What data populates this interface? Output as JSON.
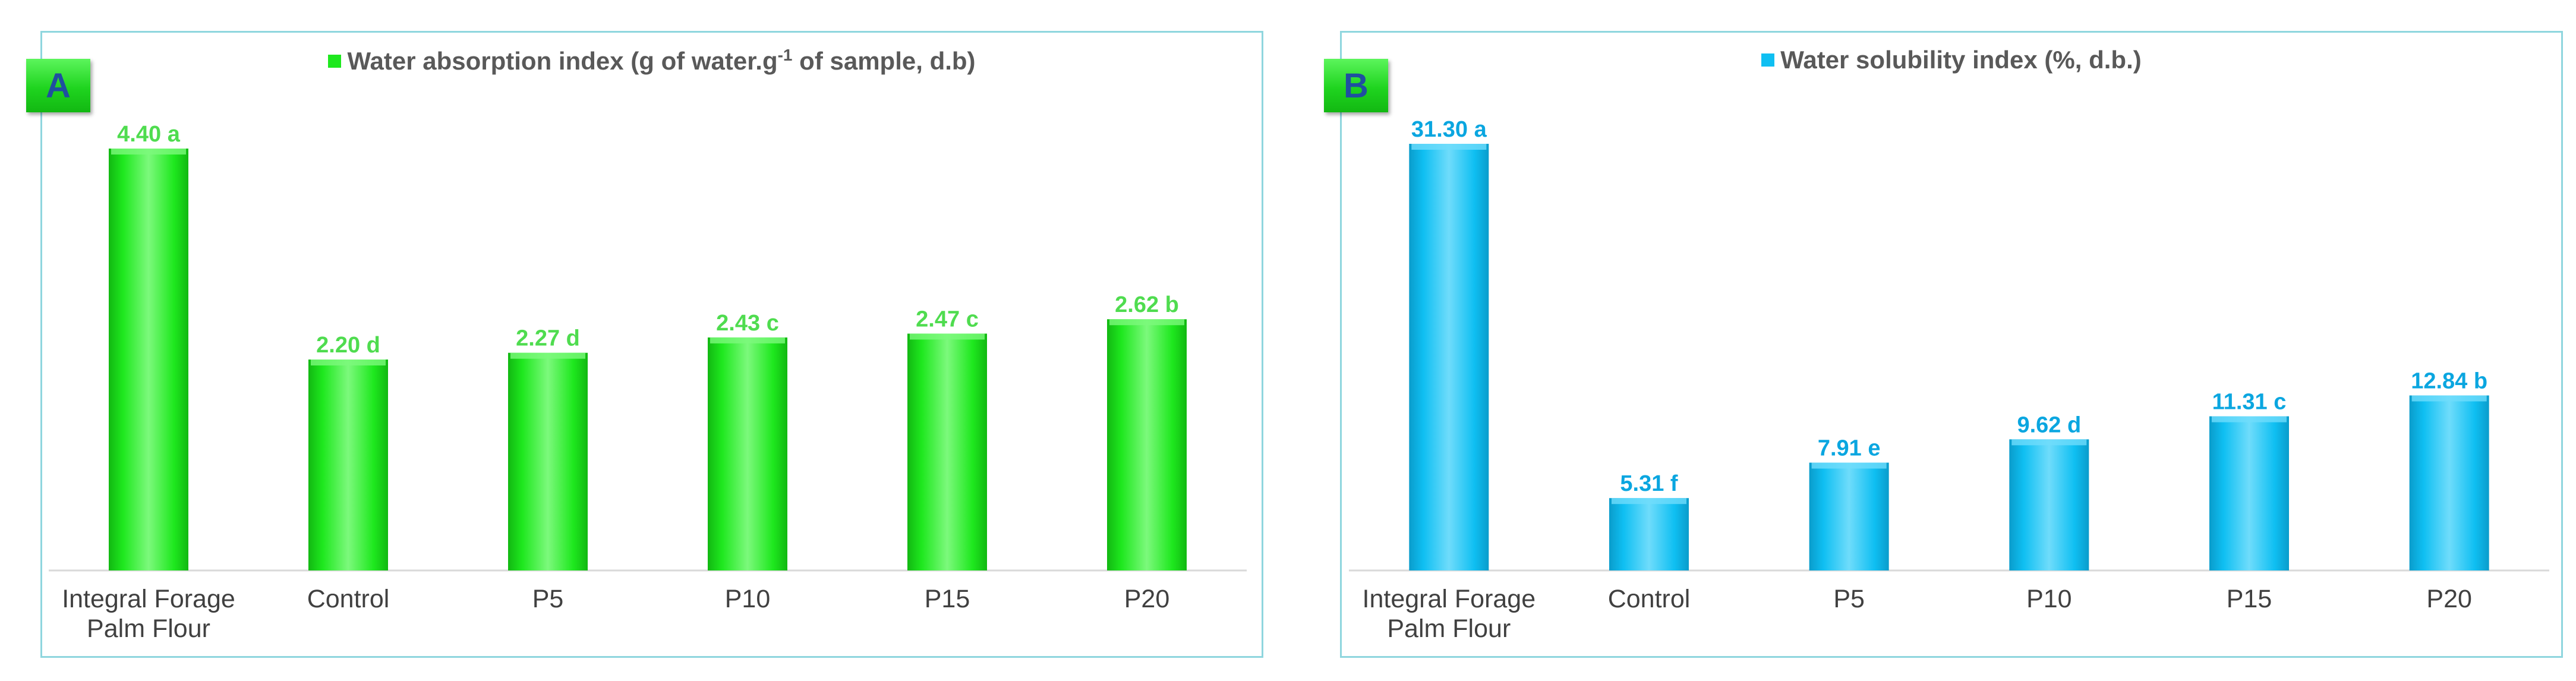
{
  "chart_data": [
    {
      "type": "bar",
      "panel_label": "A",
      "title_main": "Water absorption index (g of water.g",
      "title_sup": "-1",
      "title_rest": " of sample, d.b)",
      "categories": [
        "Integral Forage Palm Flour",
        "Control",
        "P5",
        "P10",
        "P15",
        "P20"
      ],
      "category_lines": [
        [
          "Integral Forage",
          "Palm Flour"
        ],
        [
          "Control"
        ],
        [
          "P5"
        ],
        [
          "P10"
        ],
        [
          "P15"
        ],
        [
          "P20"
        ]
      ],
      "values": [
        4.4,
        2.2,
        2.27,
        2.43,
        2.47,
        2.62
      ],
      "data_labels": [
        "4.40 a",
        "2.20 d",
        "2.27 d",
        "2.43 c",
        "2.47 c",
        "2.62 b"
      ],
      "ylim": [
        0,
        4.4
      ],
      "color": "#1ee81e",
      "color_light": "#7cf97c",
      "color_dark": "#12b812",
      "label_color": "#4fdc4f"
    },
    {
      "type": "bar",
      "panel_label": "B",
      "title_main": "Water solubility index (%, d.b.)",
      "title_sup": "",
      "title_rest": "",
      "categories": [
        "Integral Forage Palm Flour",
        "Control",
        "P5",
        "P10",
        "P15",
        "P20"
      ],
      "category_lines": [
        [
          "Integral Forage",
          "Palm Flour"
        ],
        [
          "Control"
        ],
        [
          "P5"
        ],
        [
          "P10"
        ],
        [
          "P15"
        ],
        [
          "P20"
        ]
      ],
      "values": [
        31.3,
        5.31,
        7.91,
        9.62,
        11.31,
        12.84
      ],
      "data_labels": [
        "31.30 a",
        "5.31 f",
        "7.91 e",
        "9.62 d",
        "11.31 c",
        "12.84 b"
      ],
      "ylim": [
        0,
        31.3
      ],
      "color": "#0fbff2",
      "color_light": "#6fdcfb",
      "color_dark": "#0a9ccb",
      "label_color": "#0aa6e0"
    }
  ]
}
